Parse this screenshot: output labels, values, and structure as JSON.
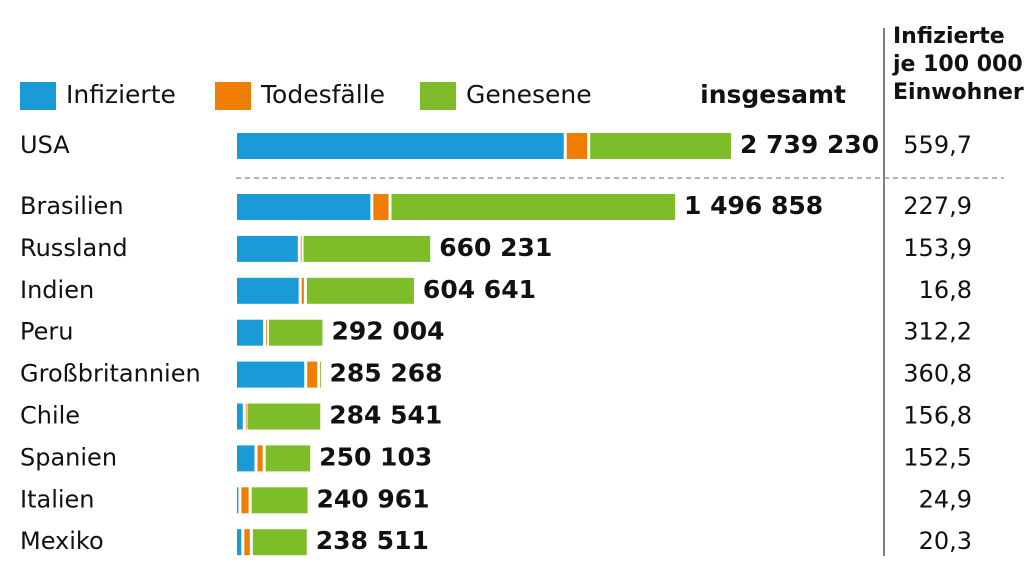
{
  "chart_data": {
    "type": "stacked-bar-horizontal",
    "categories": [
      "USA",
      "Brasilien",
      "Russland",
      "Indien",
      "Peru",
      "Großbritannien",
      "Chile",
      "Spanien",
      "Italien",
      "Mexiko"
    ],
    "series": [
      {
        "name": "Infizierte",
        "color": "#1a9ad6",
        "values": [
          1828230,
          466000,
          218000,
          221000,
          99000,
          240000,
          30000,
          70000,
          15000,
          25000
        ]
      },
      {
        "name": "Todesfälle",
        "color": "#ef7d00",
        "values": [
          130000,
          62000,
          9500,
          17800,
          10000,
          44000,
          6000,
          28000,
          35000,
          29000
        ]
      },
      {
        "name": "Genesene",
        "color": "#7dbd2a",
        "values": [
          781000,
          968858,
          432731,
          365841,
          183004,
          1268,
          248541,
          152103,
          190961,
          184511
        ]
      }
    ],
    "totals_title": "insgesamt",
    "totals": {
      "values": [
        2739230,
        1496858,
        660231,
        604641,
        292004,
        285268,
        284541,
        250103,
        240961,
        238511
      ],
      "value_labels": [
        "2 739 230",
        "1 496 858",
        "660 231",
        "604 641",
        "292 004",
        "285 268",
        "284 541",
        "250 103",
        "240 961",
        "238 511"
      ]
    },
    "per_100k_title": [
      "Infizierte",
      "je 100 000",
      "Einwohner"
    ],
    "per_100k": {
      "values": [
        559.7,
        227.9,
        153.9,
        16.8,
        312.2,
        360.8,
        156.8,
        152.5,
        24.9,
        20.3
      ],
      "value_labels": [
        "559,7",
        "227,9",
        "153,9",
        "16,8",
        "312,2",
        "360,8",
        "156,8",
        "152,5",
        "24,9",
        "20,3"
      ]
    },
    "first_row_own_scale": true
  }
}
